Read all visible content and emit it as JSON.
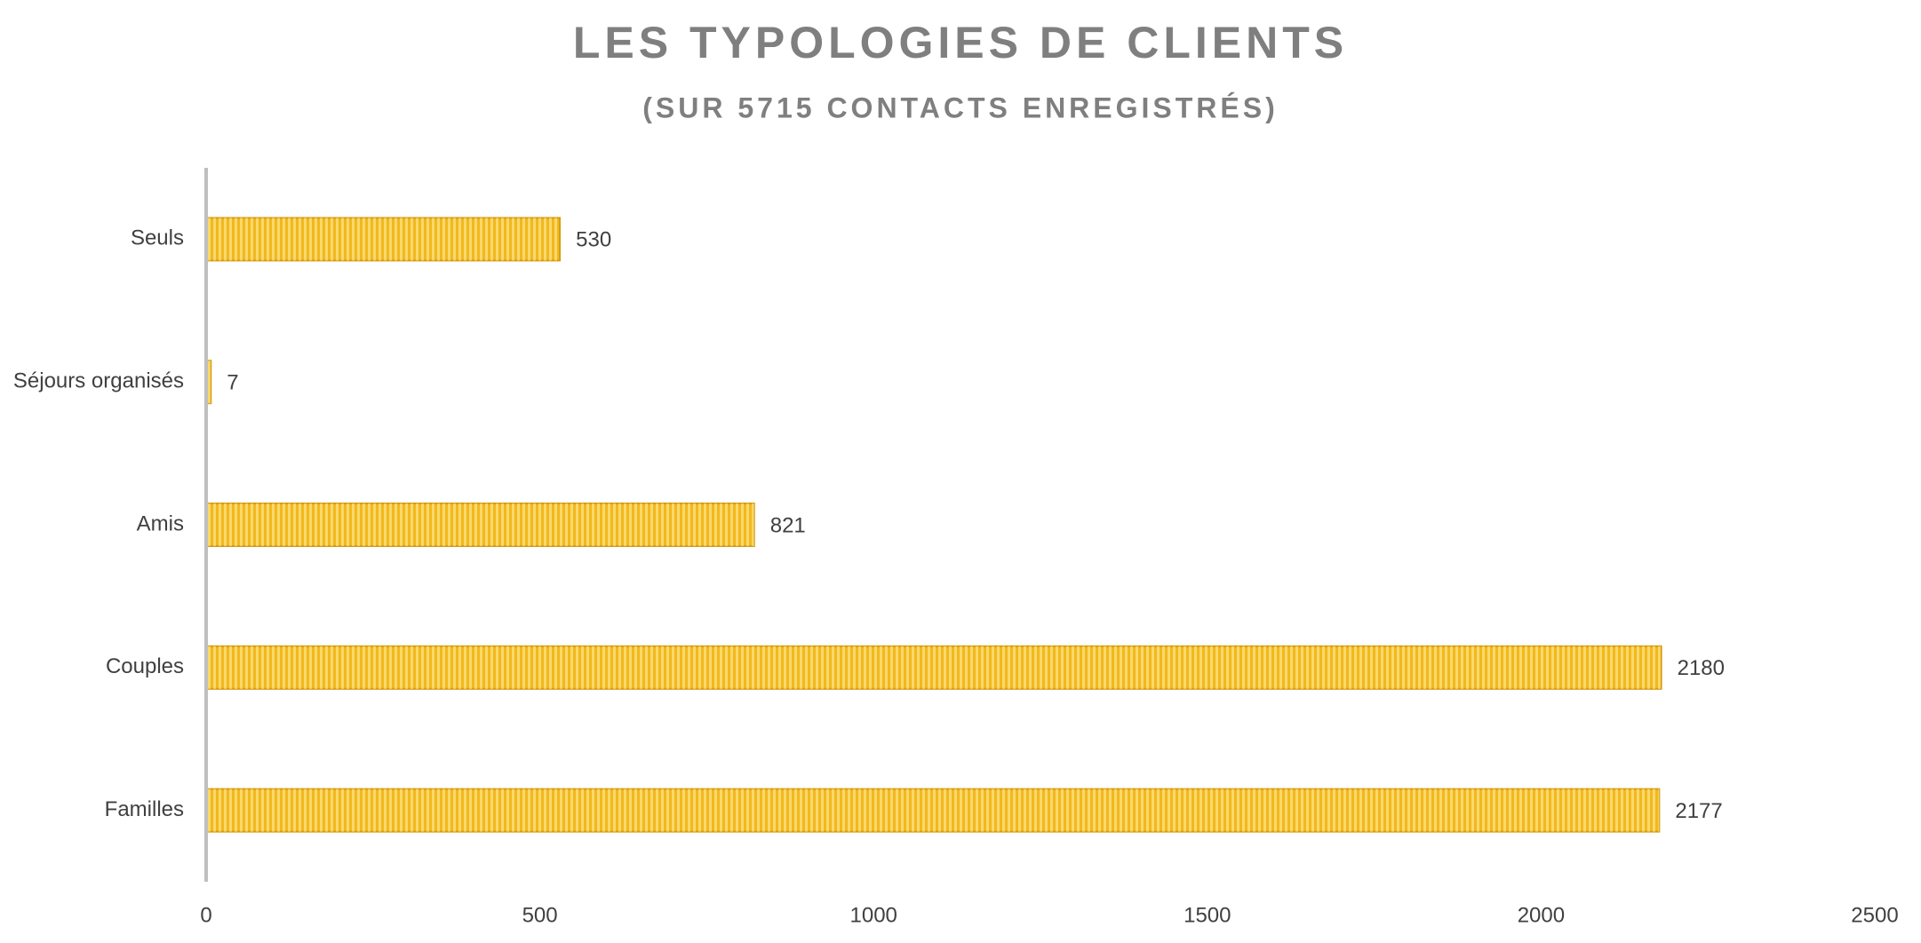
{
  "chart_data": {
    "type": "barh",
    "title": "LES TYPOLOGIES DE CLIENTS",
    "subtitle": "(SUR 5715 CONTACTS ENREGISTRÉS)",
    "categories": [
      "Seuls",
      "Séjours organisés",
      "Amis",
      "Couples",
      "Familles"
    ],
    "values": [
      530,
      7,
      821,
      2180,
      2177
    ],
    "color": "#f2b81f",
    "xlim": [
      0,
      2500
    ],
    "xticks": [
      0,
      500,
      1000,
      1500,
      2000,
      2500
    ],
    "grid": false
  }
}
